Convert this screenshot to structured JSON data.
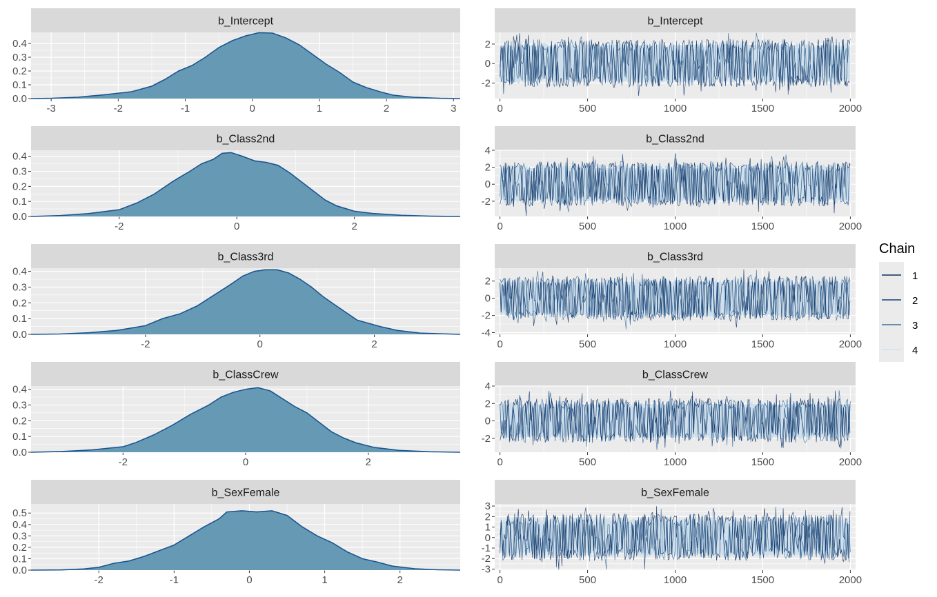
{
  "chart_data": {
    "type": "mcmc_density_trace",
    "legend": {
      "title": "Chain",
      "placement": "right",
      "entries": [
        {
          "label": "1",
          "color": "#0a2f5e"
        },
        {
          "label": "2",
          "color": "#163e78"
        },
        {
          "label": "3",
          "color": "#3b6f9d"
        },
        {
          "label": "4",
          "color": "#cfe0ec"
        }
      ]
    },
    "colors": {
      "density_fill": "#6699b4",
      "density_line": "#1b5590",
      "panel_bg": "#ebebeb",
      "strip_bg": "#d9d9d9",
      "grid": "#ffffff",
      "trace_band": "#d2e2ed"
    },
    "trace_x": {
      "range": [
        -30,
        2030
      ],
      "ticks": [
        0,
        500,
        1000,
        1500,
        2000
      ],
      "tick_labels": [
        "0",
        "500",
        "1000",
        "1500",
        "2000"
      ],
      "iterations": 2000
    },
    "parameters": [
      {
        "name": "b_Intercept",
        "density": {
          "x_range": [
            -3.3,
            3.1
          ],
          "x_ticks": [
            -3,
            -2,
            -1,
            0,
            1,
            2,
            3
          ],
          "x_tick_labels": [
            "-3",
            "-2",
            "-1",
            "0",
            "1",
            "2",
            "3"
          ],
          "y_range": [
            0,
            0.48
          ],
          "y_ticks": [
            0,
            0.1,
            0.2,
            0.3,
            0.4
          ],
          "y_tick_labels": [
            "0.0",
            "0.1",
            "0.2",
            "0.3",
            "0.4"
          ],
          "curve": [
            [
              -3.3,
              0
            ],
            [
              -3,
              0.002
            ],
            [
              -2.6,
              0.01
            ],
            [
              -2.2,
              0.028
            ],
            [
              -1.8,
              0.05
            ],
            [
              -1.5,
              0.09
            ],
            [
              -1.3,
              0.14
            ],
            [
              -1.1,
              0.2
            ],
            [
              -0.9,
              0.24
            ],
            [
              -0.7,
              0.3
            ],
            [
              -0.5,
              0.37
            ],
            [
              -0.3,
              0.42
            ],
            [
              -0.1,
              0.455
            ],
            [
              0.1,
              0.478
            ],
            [
              0.3,
              0.475
            ],
            [
              0.5,
              0.44
            ],
            [
              0.7,
              0.39
            ],
            [
              0.9,
              0.32
            ],
            [
              1.1,
              0.25
            ],
            [
              1.3,
              0.19
            ],
            [
              1.5,
              0.12
            ],
            [
              1.7,
              0.08
            ],
            [
              1.9,
              0.05
            ],
            [
              2.1,
              0.025
            ],
            [
              2.4,
              0.01
            ],
            [
              2.8,
              0.002
            ],
            [
              3.1,
              0
            ]
          ]
        },
        "trace": {
          "y_range": [
            -3.6,
            3.2
          ],
          "y_ticks": [
            -2,
            0,
            2
          ],
          "y_tick_labels": [
            "-2",
            "0",
            "2"
          ],
          "band": [
            -2.1,
            2.2
          ],
          "center_range": [
            -0.5,
            0.5
          ]
        }
      },
      {
        "name": "b_Class2nd",
        "density": {
          "x_range": [
            -3.5,
            3.8
          ],
          "x_ticks": [
            -2,
            0,
            2
          ],
          "x_tick_labels": [
            "-2",
            "0",
            "2"
          ],
          "y_range": [
            0,
            0.44
          ],
          "y_ticks": [
            0,
            0.1,
            0.2,
            0.3,
            0.4
          ],
          "y_tick_labels": [
            "0.0",
            "0.1",
            "0.2",
            "0.3",
            "0.4"
          ],
          "curve": [
            [
              -3.5,
              0
            ],
            [
              -3,
              0.006
            ],
            [
              -2.5,
              0.02
            ],
            [
              -2,
              0.045
            ],
            [
              -1.7,
              0.09
            ],
            [
              -1.4,
              0.15
            ],
            [
              -1.1,
              0.23
            ],
            [
              -0.8,
              0.3
            ],
            [
              -0.6,
              0.35
            ],
            [
              -0.4,
              0.38
            ],
            [
              -0.25,
              0.42
            ],
            [
              -0.1,
              0.425
            ],
            [
              0.1,
              0.4
            ],
            [
              0.3,
              0.37
            ],
            [
              0.5,
              0.36
            ],
            [
              0.7,
              0.34
            ],
            [
              0.9,
              0.29
            ],
            [
              1.1,
              0.23
            ],
            [
              1.3,
              0.17
            ],
            [
              1.5,
              0.11
            ],
            [
              1.7,
              0.07
            ],
            [
              2,
              0.035
            ],
            [
              2.3,
              0.02
            ],
            [
              2.8,
              0.008
            ],
            [
              3.3,
              0.002
            ],
            [
              3.8,
              0
            ]
          ]
        },
        "trace": {
          "y_range": [
            -3.8,
            4.0
          ],
          "y_ticks": [
            -2,
            0,
            2,
            4
          ],
          "y_tick_labels": [
            "-2",
            "0",
            "2",
            "4"
          ],
          "band": [
            -2.3,
            2.4
          ],
          "center_range": [
            -0.5,
            0.5
          ]
        }
      },
      {
        "name": "b_Class3rd",
        "density": {
          "x_range": [
            -4.0,
            3.5
          ],
          "x_ticks": [
            -2,
            0,
            2
          ],
          "x_tick_labels": [
            "-2",
            "0",
            "2"
          ],
          "y_range": [
            0,
            0.42
          ],
          "y_ticks": [
            0,
            0.1,
            0.2,
            0.3,
            0.4
          ],
          "y_tick_labels": [
            "0.0",
            "0.1",
            "0.2",
            "0.3",
            "0.4"
          ],
          "curve": [
            [
              -4,
              0
            ],
            [
              -3.5,
              0.002
            ],
            [
              -3,
              0.01
            ],
            [
              -2.5,
              0.025
            ],
            [
              -2,
              0.055
            ],
            [
              -1.7,
              0.1
            ],
            [
              -1.4,
              0.13
            ],
            [
              -1.1,
              0.18
            ],
            [
              -0.8,
              0.25
            ],
            [
              -0.5,
              0.32
            ],
            [
              -0.3,
              0.37
            ],
            [
              -0.1,
              0.4
            ],
            [
              0.1,
              0.41
            ],
            [
              0.3,
              0.41
            ],
            [
              0.5,
              0.39
            ],
            [
              0.7,
              0.35
            ],
            [
              0.9,
              0.3
            ],
            [
              1.1,
              0.24
            ],
            [
              1.3,
              0.19
            ],
            [
              1.5,
              0.14
            ],
            [
              1.7,
              0.09
            ],
            [
              1.9,
              0.07
            ],
            [
              2.1,
              0.05
            ],
            [
              2.4,
              0.025
            ],
            [
              2.8,
              0.008
            ],
            [
              3.5,
              0
            ]
          ]
        },
        "trace": {
          "y_range": [
            -4.2,
            3.5
          ],
          "y_ticks": [
            -4,
            -2,
            0,
            2
          ],
          "y_tick_labels": [
            "-4",
            "-2",
            "0",
            "2"
          ],
          "band": [
            -2.3,
            2.3
          ],
          "center_range": [
            -0.5,
            0.5
          ]
        }
      },
      {
        "name": "b_ClassCrew",
        "density": {
          "x_range": [
            -3.5,
            3.5
          ],
          "x_ticks": [
            -2,
            0,
            2
          ],
          "x_tick_labels": [
            "-2",
            "0",
            "2"
          ],
          "y_range": [
            0,
            0.42
          ],
          "y_ticks": [
            0,
            0.1,
            0.2,
            0.3,
            0.4
          ],
          "y_tick_labels": [
            "0.0",
            "0.1",
            "0.2",
            "0.3",
            "0.4"
          ],
          "curve": [
            [
              -3.5,
              0
            ],
            [
              -3,
              0.005
            ],
            [
              -2.5,
              0.015
            ],
            [
              -2,
              0.035
            ],
            [
              -1.8,
              0.06
            ],
            [
              -1.5,
              0.11
            ],
            [
              -1.2,
              0.17
            ],
            [
              -0.9,
              0.24
            ],
            [
              -0.6,
              0.3
            ],
            [
              -0.4,
              0.35
            ],
            [
              -0.2,
              0.38
            ],
            [
              0,
              0.4
            ],
            [
              0.2,
              0.41
            ],
            [
              0.4,
              0.39
            ],
            [
              0.6,
              0.34
            ],
            [
              0.8,
              0.29
            ],
            [
              1,
              0.25
            ],
            [
              1.2,
              0.19
            ],
            [
              1.4,
              0.13
            ],
            [
              1.6,
              0.09
            ],
            [
              1.8,
              0.06
            ],
            [
              2.1,
              0.03
            ],
            [
              2.5,
              0.012
            ],
            [
              3,
              0.003
            ],
            [
              3.5,
              0
            ]
          ]
        },
        "trace": {
          "y_range": [
            -3.6,
            4.0
          ],
          "y_ticks": [
            -2,
            0,
            2,
            4
          ],
          "y_tick_labels": [
            "-2",
            "0",
            "2",
            "4"
          ],
          "band": [
            -2.2,
            2.3
          ],
          "center_range": [
            -0.5,
            0.5
          ]
        }
      },
      {
        "name": "b_SexFemale",
        "density": {
          "x_range": [
            -2.9,
            2.8
          ],
          "x_ticks": [
            -2,
            -1,
            0,
            1,
            2
          ],
          "x_tick_labels": [
            "-2",
            "-1",
            "0",
            "1",
            "2"
          ],
          "y_range": [
            0,
            0.58
          ],
          "y_ticks": [
            0,
            0.1,
            0.2,
            0.3,
            0.4,
            0.5
          ],
          "y_tick_labels": [
            "0.0",
            "0.1",
            "0.2",
            "0.3",
            "0.4",
            "0.5"
          ],
          "curve": [
            [
              -2.9,
              0
            ],
            [
              -2.5,
              0.002
            ],
            [
              -2.2,
              0.01
            ],
            [
              -2,
              0.025
            ],
            [
              -1.8,
              0.06
            ],
            [
              -1.6,
              0.08
            ],
            [
              -1.4,
              0.12
            ],
            [
              -1.2,
              0.17
            ],
            [
              -1,
              0.22
            ],
            [
              -0.8,
              0.3
            ],
            [
              -0.6,
              0.38
            ],
            [
              -0.4,
              0.45
            ],
            [
              -0.3,
              0.51
            ],
            [
              -0.1,
              0.52
            ],
            [
              0.1,
              0.51
            ],
            [
              0.3,
              0.52
            ],
            [
              0.5,
              0.48
            ],
            [
              0.7,
              0.38
            ],
            [
              0.9,
              0.3
            ],
            [
              1.1,
              0.24
            ],
            [
              1.3,
              0.16
            ],
            [
              1.5,
              0.1
            ],
            [
              1.7,
              0.07
            ],
            [
              1.9,
              0.035
            ],
            [
              2.2,
              0.012
            ],
            [
              2.5,
              0.003
            ],
            [
              2.8,
              0
            ]
          ]
        },
        "trace": {
          "y_range": [
            -3.1,
            3.2
          ],
          "y_ticks": [
            -3,
            -2,
            -1,
            0,
            1,
            2,
            3
          ],
          "y_tick_labels": [
            "-3",
            "-2",
            "-1",
            "0",
            "1",
            "2",
            "3"
          ],
          "band": [
            -1.9,
            2.0
          ],
          "center_range": [
            -0.4,
            0.4
          ]
        }
      }
    ]
  }
}
